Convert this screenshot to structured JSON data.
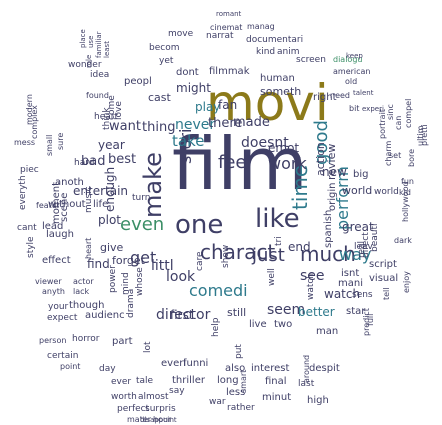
{
  "colors": {
    "background": "#ffffff",
    "palette": [
      "#3f3f66",
      "#2e7a8c",
      "#8c7a1a",
      "#3c8f67",
      "#444a66",
      "#c8891b"
    ]
  },
  "words": [
    {
      "text": "film",
      "color": "#3f3f66"
    },
    {
      "text": "movi",
      "color": "#8c7a1a"
    },
    {
      "text": "one",
      "color": "#3f3f66"
    },
    {
      "text": "like",
      "color": "#3f3f66"
    },
    {
      "text": "make",
      "color": "#3f3f66"
    },
    {
      "text": "charact",
      "color": "#3f3f66"
    },
    {
      "text": "much",
      "color": "#3f3f66"
    },
    {
      "text": "time",
      "color": "#2e7a8c"
    },
    {
      "text": "just",
      "color": "#3f3f66"
    },
    {
      "text": "feel",
      "color": "#3f3f66"
    },
    {
      "text": "even",
      "color": "#3c8f67"
    },
    {
      "text": "good",
      "color": "#2e7a8c"
    },
    {
      "text": "work",
      "color": "#3f3f66"
    },
    {
      "text": "watch",
      "color": "#3f3f66"
    },
    {
      "text": "get",
      "color": "#3f3f66"
    },
    {
      "text": "look",
      "color": "#3f3f66"
    },
    {
      "text": "comedi",
      "color": "#2e7a8c"
    },
    {
      "text": "director",
      "color": "#3f3f66"
    },
    {
      "text": "way",
      "color": "#2e7a8c"
    },
    {
      "text": "see",
      "color": "#3f3f66"
    },
    {
      "text": "stori",
      "color": "#3f3f66"
    },
    {
      "text": "perform",
      "color": "#2e7a8c"
    },
    {
      "text": "take",
      "color": "#2e7a8c"
    },
    {
      "text": "doesnt",
      "color": "#3f3f66"
    },
    {
      "text": "never",
      "color": "#2e7a8c"
    },
    {
      "text": "there",
      "color": "#3f3f66"
    },
    {
      "text": "made",
      "color": "#3f3f66"
    },
    {
      "text": "emot",
      "color": "#3f3f66"
    },
    {
      "text": "play",
      "color": "#2e7a8c"
    },
    {
      "text": "fan",
      "color": "#3f3f66"
    },
    {
      "text": "want",
      "color": "#3f3f66"
    },
    {
      "text": "thing",
      "color": "#3f3f66"
    },
    {
      "text": "year",
      "color": "#3f3f66"
    },
    {
      "text": "bad",
      "color": "#3f3f66"
    },
    {
      "text": "best",
      "color": "#3f3f66"
    },
    {
      "text": "new",
      "color": "#3f3f66"
    },
    {
      "text": "end",
      "color": "#3f3f66"
    },
    {
      "text": "world",
      "color": "#3f3f66"
    },
    {
      "text": "great",
      "color": "#3f3f66"
    },
    {
      "text": "seem",
      "color": "#3f3f66"
    },
    {
      "text": "better",
      "color": "#2e7a8c"
    },
    {
      "text": "littl",
      "color": "#3f3f66"
    },
    {
      "text": "first",
      "color": "#3f3f66"
    },
    {
      "text": "still",
      "color": "#3f3f66"
    },
    {
      "text": "live",
      "color": "#3f3f66"
    },
    {
      "text": "two",
      "color": "#3f3f66"
    },
    {
      "text": "man",
      "color": "#3f3f66"
    },
    {
      "text": "find",
      "color": "#3f3f66"
    },
    {
      "text": "give",
      "color": "#3f3f66"
    },
    {
      "text": "plot",
      "color": "#3f3f66"
    },
    {
      "text": "entertain",
      "color": "#3f3f66"
    },
    {
      "text": "enough",
      "color": "#3f3f66"
    },
    {
      "text": "without",
      "color": "#3f3f66"
    },
    {
      "text": "life",
      "color": "#3f3f66"
    },
    {
      "text": "cast",
      "color": "#3f3f66"
    },
    {
      "text": "might",
      "color": "#3f3f66"
    },
    {
      "text": "someth",
      "color": "#3f3f66"
    },
    {
      "text": "right",
      "color": "#3f3f66"
    },
    {
      "text": "human",
      "color": "#3f3f66"
    },
    {
      "text": "dont",
      "color": "#3f3f66"
    },
    {
      "text": "filmmak",
      "color": "#3f3f66"
    },
    {
      "text": "peopl",
      "color": "#3f3f66"
    },
    {
      "text": "idea",
      "color": "#3f3f66"
    },
    {
      "text": "wonder",
      "color": "#3f3f66"
    },
    {
      "text": "yet",
      "color": "#3f3f66"
    },
    {
      "text": "becom",
      "color": "#3f3f66"
    },
    {
      "text": "move",
      "color": "#3f3f66"
    },
    {
      "text": "narrat",
      "color": "#3f3f66"
    },
    {
      "text": "cinemat",
      "color": "#3f3f66"
    },
    {
      "text": "romant",
      "color": "#3f3f66"
    },
    {
      "text": "manag",
      "color": "#3f3f66"
    },
    {
      "text": "documentari",
      "color": "#3f3f66"
    },
    {
      "text": "kind",
      "color": "#3f3f66"
    },
    {
      "text": "anim",
      "color": "#3f3f66"
    },
    {
      "text": "screen",
      "color": "#3f3f66"
    },
    {
      "text": "dialogu",
      "color": "#3c8f67"
    },
    {
      "text": "american",
      "color": "#3f3f66"
    },
    {
      "text": "old",
      "color": "#3f3f66"
    },
    {
      "text": "keep",
      "color": "#3f3f66"
    },
    {
      "text": "need",
      "color": "#3f3f66"
    },
    {
      "text": "talent",
      "color": "#3f3f66"
    },
    {
      "text": "bit",
      "color": "#3f3f66"
    },
    {
      "text": "experi",
      "color": "#3f3f66"
    },
    {
      "text": "big",
      "color": "#3f3f66"
    },
    {
      "text": "origin",
      "color": "#3f3f66"
    },
    {
      "text": "action",
      "color": "#3f3f66"
    },
    {
      "text": "review",
      "color": "#3f3f66"
    },
    {
      "text": "spanish",
      "color": "#3f3f66"
    },
    {
      "text": "real",
      "color": "#3f3f66"
    },
    {
      "text": "leav",
      "color": "#3f3f66"
    },
    {
      "text": "direct",
      "color": "#3f3f66"
    },
    {
      "text": "beauti",
      "color": "#3f3f66"
    },
    {
      "text": "dark",
      "color": "#3f3f66"
    },
    {
      "text": "hollywood",
      "color": "#3f3f66"
    },
    {
      "text": "isnt",
      "color": "#3f3f66"
    },
    {
      "text": "script",
      "color": "#3f3f66"
    },
    {
      "text": "mani",
      "color": "#3f3f66"
    },
    {
      "text": "visual",
      "color": "#3f3f66"
    },
    {
      "text": "sens",
      "color": "#3f3f66"
    },
    {
      "text": "star",
      "color": "#3f3f66"
    },
    {
      "text": "effect",
      "color": "#3f3f66"
    },
    {
      "text": "style",
      "color": "#3f3f66"
    },
    {
      "text": "laugh",
      "color": "#3f3f66"
    },
    {
      "text": "lead",
      "color": "#3f3f66"
    },
    {
      "text": "cant",
      "color": "#3f3f66"
    },
    {
      "text": "moment",
      "color": "#3f3f66"
    },
    {
      "text": "scene",
      "color": "#3f3f66"
    },
    {
      "text": "music",
      "color": "#3f3f66"
    },
    {
      "text": "everyth",
      "color": "#3f3f66"
    },
    {
      "text": "featur",
      "color": "#3f3f66"
    },
    {
      "text": "anoth",
      "color": "#3f3f66"
    },
    {
      "text": "piec",
      "color": "#3f3f66"
    },
    {
      "text": "hard",
      "color": "#3f3f66"
    },
    {
      "text": "viewer",
      "color": "#3f3f66"
    },
    {
      "text": "actor",
      "color": "#3f3f66"
    },
    {
      "text": "anyth",
      "color": "#3f3f66"
    },
    {
      "text": "lack",
      "color": "#3f3f66"
    },
    {
      "text": "your",
      "color": "#3f3f66"
    },
    {
      "text": "though",
      "color": "#3f3f66"
    },
    {
      "text": "expect",
      "color": "#3f3f66"
    },
    {
      "text": "audienc",
      "color": "#3f3f66"
    },
    {
      "text": "person",
      "color": "#3f3f66"
    },
    {
      "text": "horror",
      "color": "#3f3f66"
    },
    {
      "text": "part",
      "color": "#3f3f66"
    },
    {
      "text": "certain",
      "color": "#3f3f66"
    },
    {
      "text": "point",
      "color": "#3f3f66"
    },
    {
      "text": "day",
      "color": "#3f3f66"
    },
    {
      "text": "everi",
      "color": "#3f3f66"
    },
    {
      "text": "funni",
      "color": "#3f3f66"
    },
    {
      "text": "also",
      "color": "#3f3f66"
    },
    {
      "text": "interest",
      "color": "#3f3f66"
    },
    {
      "text": "despit",
      "color": "#3f3f66"
    },
    {
      "text": "ever",
      "color": "#3f3f66"
    },
    {
      "text": "tale",
      "color": "#3f3f66"
    },
    {
      "text": "thriller",
      "color": "#3f3f66"
    },
    {
      "text": "long",
      "color": "#3f3f66"
    },
    {
      "text": "final",
      "color": "#3f3f66"
    },
    {
      "text": "last",
      "color": "#3f3f66"
    },
    {
      "text": "worth",
      "color": "#3f3f66"
    },
    {
      "text": "almost",
      "color": "#3f3f66"
    },
    {
      "text": "say",
      "color": "#3f3f66"
    },
    {
      "text": "less",
      "color": "#3f3f66"
    },
    {
      "text": "minut",
      "color": "#3f3f66"
    },
    {
      "text": "high",
      "color": "#3f3f66"
    },
    {
      "text": "perfect",
      "color": "#3f3f66"
    },
    {
      "text": "surpris",
      "color": "#3f3f66"
    },
    {
      "text": "war",
      "color": "#3f3f66"
    },
    {
      "text": "rather",
      "color": "#3f3f66"
    },
    {
      "text": "mater",
      "color": "#3f3f66"
    },
    {
      "text": "hour",
      "color": "#3f3f66"
    },
    {
      "text": "disappoint",
      "color": "#3f3f66"
    },
    {
      "text": "around",
      "color": "#3f3f66"
    },
    {
      "text": "place",
      "color": "#3f3f66"
    },
    {
      "text": "use",
      "color": "#3f3f66"
    },
    {
      "text": "role",
      "color": "#3f3f66"
    },
    {
      "text": "familiar",
      "color": "#3f3f66"
    },
    {
      "text": "least",
      "color": "#3f3f66"
    },
    {
      "text": "heart",
      "color": "#3f3f66"
    },
    {
      "text": "love",
      "color": "#3f3f66"
    },
    {
      "text": "come",
      "color": "#3f3f66"
    },
    {
      "text": "think",
      "color": "#3f3f66"
    },
    {
      "text": "turn",
      "color": "#3f3f66"
    },
    {
      "text": "ultim",
      "color": "#3f3f66"
    },
    {
      "text": "pretti",
      "color": "#3f3f66"
    },
    {
      "text": "compel",
      "color": "#3f3f66"
    },
    {
      "text": "can",
      "color": "#3f3f66"
    },
    {
      "text": "sinc",
      "color": "#3f3f66"
    },
    {
      "text": "portrait",
      "color": "#3f3f66"
    },
    {
      "text": "set",
      "color": "#3f3f66"
    },
    {
      "text": "fun",
      "color": "#3f3f66"
    },
    {
      "text": "bore",
      "color": "#3f3f66"
    },
    {
      "text": "kid",
      "color": "#3f3f66"
    },
    {
      "text": "charm",
      "color": "#3f3f66"
    },
    {
      "text": "forget",
      "color": "#3f3f66"
    },
    {
      "text": "power",
      "color": "#3f3f66"
    },
    {
      "text": "mind",
      "color": "#3f3f66"
    },
    {
      "text": "tri",
      "color": "#3f3f66"
    },
    {
      "text": "well",
      "color": "#3f3f66"
    },
    {
      "text": "show",
      "color": "#3f3f66"
    },
    {
      "text": "care",
      "color": "#3f3f66"
    },
    {
      "text": "whose",
      "color": "#3f3f66"
    },
    {
      "text": "drama",
      "color": "#3f3f66"
    },
    {
      "text": "lot",
      "color": "#3f3f66"
    },
    {
      "text": "help",
      "color": "#3f3f66"
    },
    {
      "text": "put",
      "color": "#3f3f66"
    },
    {
      "text": "smart",
      "color": "#3f3f66"
    },
    {
      "text": "predict",
      "color": "#3f3f66"
    },
    {
      "text": "full",
      "color": "#3f3f66"
    },
    {
      "text": "enjoy",
      "color": "#3f3f66"
    },
    {
      "text": "tell",
      "color": "#3f3f66"
    },
    {
      "text": "modern",
      "color": "#3f3f66"
    },
    {
      "text": "small",
      "color": "#3f3f66"
    },
    {
      "text": "mess",
      "color": "#3f3f66"
    },
    {
      "text": "complex",
      "color": "#3f3f66"
    },
    {
      "text": "world",
      "color": "#3f3f66"
    },
    {
      "text": "watch",
      "color": "#3f3f66"
    },
    {
      "text": "sure",
      "color": "#3f3f66"
    },
    {
      "text": "heart",
      "color": "#3f3f66"
    },
    {
      "text": "found",
      "color": "#3f3f66"
    }
  ]
}
